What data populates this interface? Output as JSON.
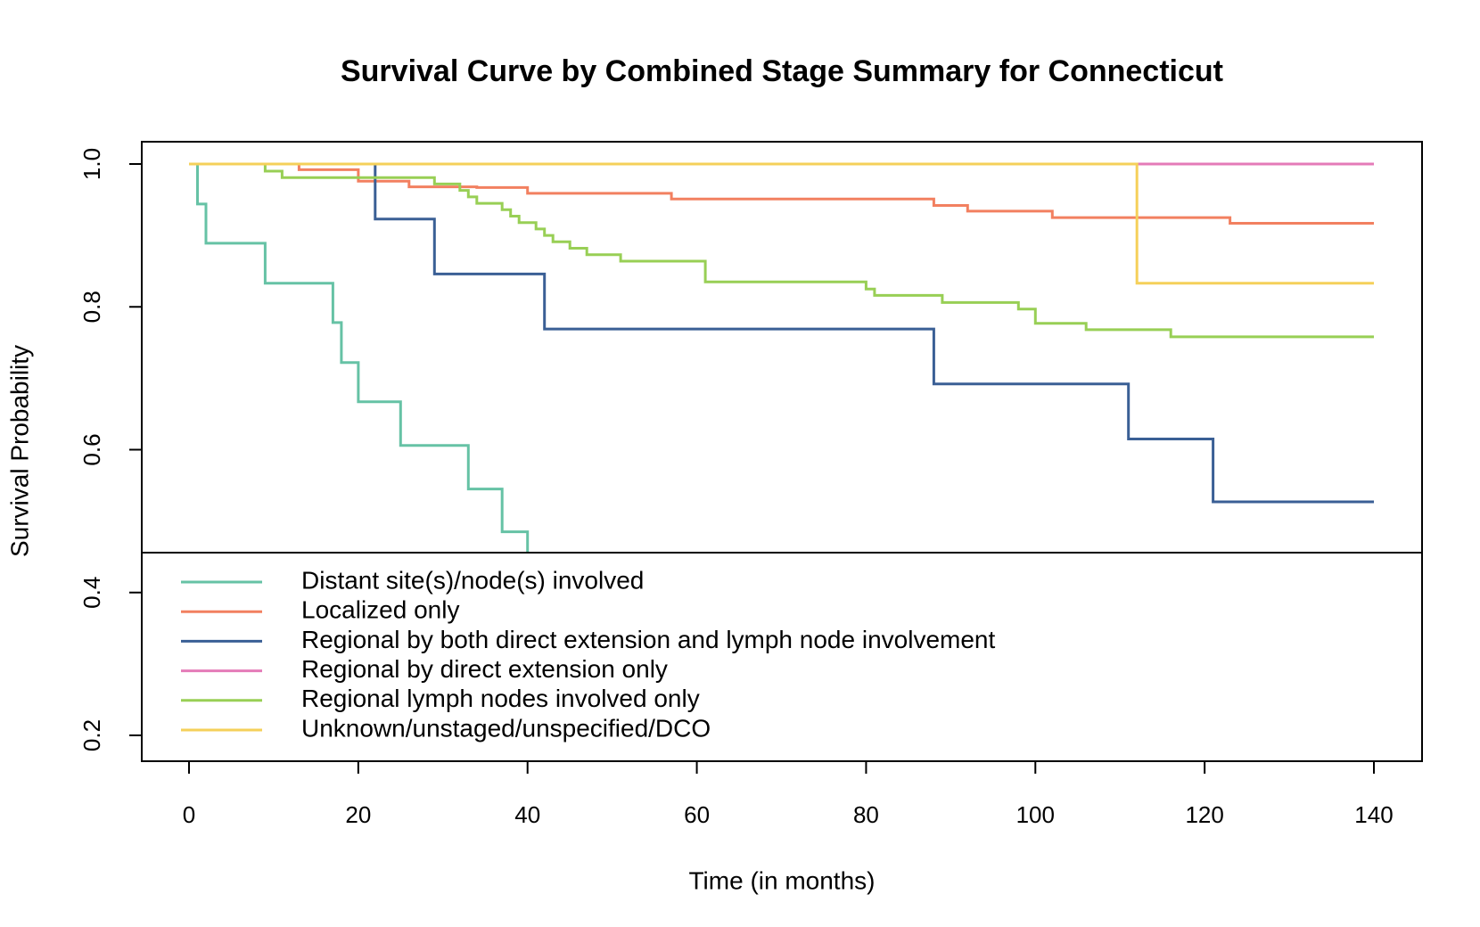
{
  "chart_data": {
    "type": "line",
    "title": "Survival Curve by Combined Stage Summary for Connecticut",
    "xlabel": "Time (in months)",
    "ylabel": "Survival Probability",
    "xlim": [
      0,
      140
    ],
    "ylim": [
      0.2,
      1.0
    ],
    "x_ticks": [
      "0",
      "20",
      "40",
      "60",
      "80",
      "100",
      "120",
      "140"
    ],
    "y_ticks": [
      "0.2",
      "0.4",
      "0.6",
      "0.8",
      "1.0"
    ],
    "grid": false,
    "legend_position": "bottom-left",
    "series": [
      {
        "name": "Distant site(s)/node(s) involved",
        "color": "#66c2a5",
        "x": [
          0,
          1,
          2,
          9,
          17,
          18,
          20,
          25,
          33,
          37,
          40
        ],
        "y": [
          1.0,
          0.944,
          0.889,
          0.833,
          0.778,
          0.722,
          0.667,
          0.606,
          0.545,
          0.485,
          0.455
        ]
      },
      {
        "name": "Localized only",
        "color": "#f28060",
        "x": [
          0,
          13,
          20,
          26,
          34,
          40,
          57,
          88,
          92,
          102,
          123,
          140
        ],
        "y": [
          1.0,
          0.992,
          0.976,
          0.968,
          0.967,
          0.959,
          0.951,
          0.942,
          0.934,
          0.925,
          0.917,
          0.917
        ]
      },
      {
        "name": "Regional by both direct extension and lymph node involvement",
        "color": "#3a5f95",
        "x": [
          0,
          22,
          29,
          42,
          88,
          111,
          121,
          140
        ],
        "y": [
          1.0,
          0.923,
          0.846,
          0.769,
          0.692,
          0.615,
          0.527,
          0.527
        ]
      },
      {
        "name": "Regional by direct extension only",
        "color": "#e47bb8",
        "x": [
          0,
          140
        ],
        "y": [
          1.0,
          1.0
        ]
      },
      {
        "name": "Regional lymph nodes involved only",
        "color": "#98cf55",
        "x": [
          0,
          9,
          11,
          29,
          32,
          33,
          34,
          37,
          38,
          39,
          41,
          42,
          43,
          45,
          47,
          51,
          61,
          80,
          81,
          89,
          98,
          100,
          106,
          116,
          140
        ],
        "y": [
          1.0,
          0.99,
          0.981,
          0.972,
          0.963,
          0.954,
          0.945,
          0.936,
          0.927,
          0.918,
          0.909,
          0.9,
          0.891,
          0.882,
          0.873,
          0.864,
          0.835,
          0.825,
          0.816,
          0.806,
          0.797,
          0.777,
          0.768,
          0.758,
          0.758
        ]
      },
      {
        "name": "Unknown/unstaged/unspecified/DCO",
        "color": "#f5d05a",
        "x": [
          0,
          112,
          140
        ],
        "y": [
          1.0,
          0.833,
          0.833
        ]
      }
    ]
  }
}
